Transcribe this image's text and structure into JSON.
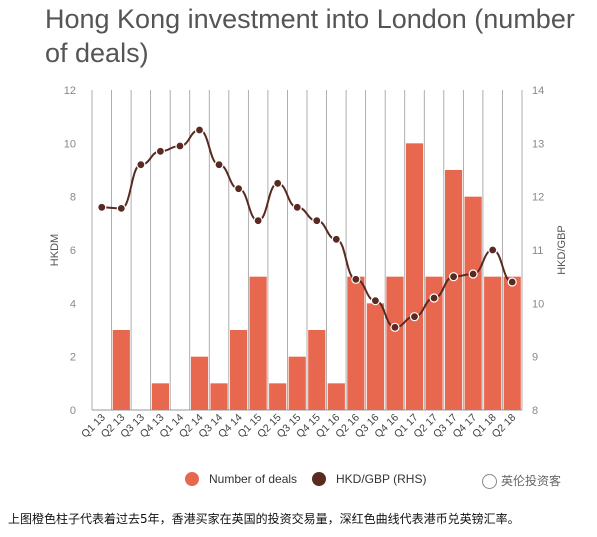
{
  "title": "Hong Kong investment into London (number of deals)",
  "chart_data": {
    "type": "bar",
    "categories": [
      "Q1 13",
      "Q2 13",
      "Q3 13",
      "Q4 13",
      "Q1 14",
      "Q2 14",
      "Q3 14",
      "Q4 14",
      "Q1 15",
      "Q2 15",
      "Q3 15",
      "Q4 15",
      "Q1 16",
      "Q2 16",
      "Q3 16",
      "Q4 16",
      "Q1 17",
      "Q2 17",
      "Q3 17",
      "Q4 17",
      "Q1 18",
      "Q2 18"
    ],
    "series": [
      {
        "name": "Number of deals",
        "kind": "bar",
        "axis": "left",
        "color": "#E8674F",
        "values": [
          0,
          3,
          0,
          1,
          0,
          2,
          1,
          3,
          5,
          1,
          2,
          3,
          1,
          5,
          4,
          5,
          10,
          5,
          9,
          8,
          5,
          5
        ]
      },
      {
        "name": "HKD/GBP (RHS)",
        "kind": "line",
        "axis": "right",
        "color": "#5A2A22",
        "values": [
          11.8,
          11.78,
          12.6,
          12.85,
          12.95,
          13.25,
          12.6,
          12.15,
          11.55,
          12.25,
          11.8,
          11.55,
          11.2,
          10.45,
          10.05,
          9.55,
          9.75,
          10.1,
          10.5,
          10.55,
          11.0,
          10.4
        ]
      }
    ],
    "ylabel": "HKDM",
    "y2label": "HKD/GBP",
    "ylim": [
      0,
      12
    ],
    "y2lim": [
      8,
      14
    ],
    "yticks": [
      0,
      2,
      4,
      6,
      8,
      10,
      12
    ],
    "y2ticks": [
      8,
      9,
      10,
      11,
      12,
      13,
      14
    ],
    "grid": "vertical",
    "legend_placement": "bottom"
  },
  "watermark": "英伦投资客",
  "caption": "上图橙色柱子代表着过去5年，香港买家在英国的投资交易量，深红色曲线代表港币兑英镑汇率。"
}
